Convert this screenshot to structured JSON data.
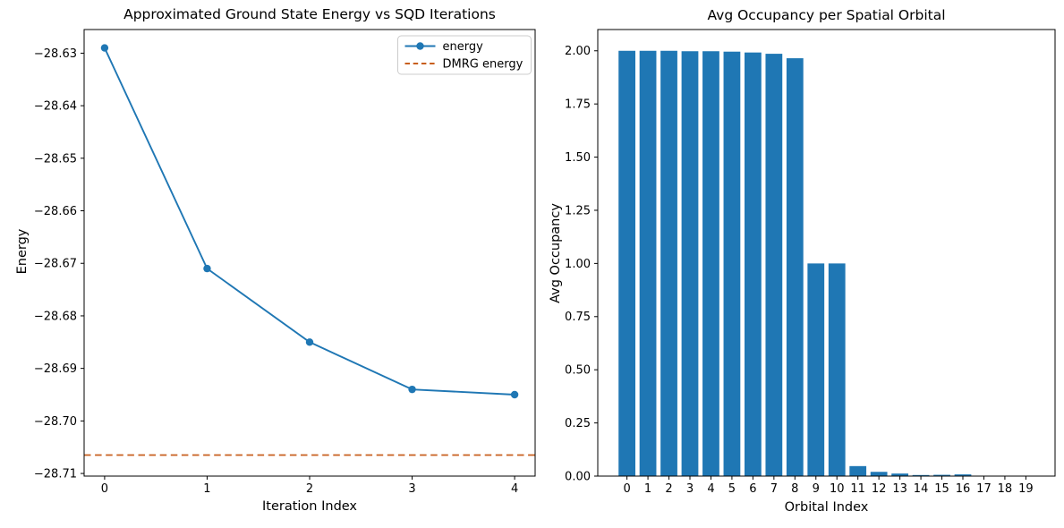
{
  "colors": {
    "series_blue": "#1f77b4",
    "bar_blue": "#1f77b4",
    "dmrg_orange": "#c85f1e",
    "spine_black": "#000000",
    "legend_border": "#cccccc",
    "background": "#ffffff"
  },
  "chart_data": [
    {
      "type": "line",
      "title": "Approximated Ground State Energy vs SQD Iterations",
      "xlabel": "Iteration Index",
      "ylabel": "Energy",
      "x": [
        0,
        1,
        2,
        3,
        4
      ],
      "series": [
        {
          "name": "energy",
          "values": [
            -28.629,
            -28.671,
            -28.685,
            -28.694,
            -28.695
          ],
          "color": "#1f77b4",
          "marker": "circle"
        }
      ],
      "hline": {
        "name": "DMRG energy",
        "value": -28.7065,
        "color": "#c85f1e",
        "style": "dashed"
      },
      "xlim": [
        -0.2,
        4.2
      ],
      "ylim": [
        -28.7105,
        -28.6255
      ],
      "xticks": {
        "values": [
          0,
          1,
          2,
          3,
          4
        ],
        "labels": [
          "0",
          "1",
          "2",
          "3",
          "4"
        ]
      },
      "yticks": {
        "values": [
          -28.63,
          -28.64,
          -28.65,
          -28.66,
          -28.67,
          -28.68,
          -28.69,
          -28.7,
          -28.71
        ],
        "labels": [
          "−28.63",
          "−28.64",
          "−28.65",
          "−28.66",
          "−28.67",
          "−28.68",
          "−28.69",
          "−28.70",
          "−28.71"
        ]
      },
      "grid": false,
      "legend": {
        "position": "upper right",
        "entries": [
          {
            "label": "energy",
            "color": "#1f77b4",
            "dash": false,
            "marker": true
          },
          {
            "label": "DMRG energy",
            "color": "#c85f1e",
            "dash": true,
            "marker": false
          }
        ]
      }
    },
    {
      "type": "bar",
      "title": "Avg Occupancy per Spatial Orbital",
      "xlabel": "Orbital Index",
      "ylabel": "Avg Occupancy",
      "categories": [
        "0",
        "1",
        "2",
        "3",
        "4",
        "5",
        "6",
        "7",
        "8",
        "9",
        "10",
        "11",
        "12",
        "13",
        "14",
        "15",
        "16",
        "17",
        "18",
        "19"
      ],
      "values": [
        2.0,
        2.0,
        2.0,
        1.998,
        1.998,
        1.996,
        1.992,
        1.986,
        1.965,
        1.0,
        1.0,
        0.047,
        0.02,
        0.012,
        0.005,
        0.006,
        0.008,
        0.001,
        0.001,
        0.001
      ],
      "bar_color": "#1f77b4",
      "xlim": [
        -1.39,
        20.39
      ],
      "ylim": [
        0,
        2.1
      ],
      "yticks": {
        "values": [
          0.0,
          0.25,
          0.5,
          0.75,
          1.0,
          1.25,
          1.5,
          1.75,
          2.0
        ],
        "labels": [
          "0.00",
          "0.25",
          "0.50",
          "0.75",
          "1.00",
          "1.25",
          "1.50",
          "1.75",
          "2.00"
        ]
      },
      "grid": false
    }
  ]
}
